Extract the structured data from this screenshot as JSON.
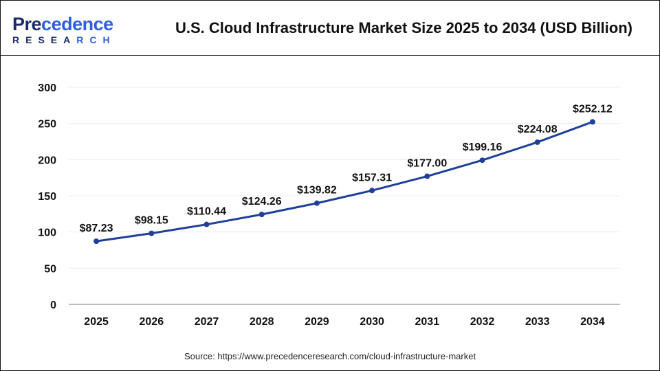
{
  "header": {
    "logo_text": "Precedence",
    "logo_sub": "RESEARCH",
    "title": "U.S. Cloud Infrastructure Market Size 2025 to 2034 (USD Billion)"
  },
  "source": "Source: https://www.precedenceresearch.com/cloud-infrastructure-market",
  "chart_data": {
    "type": "line",
    "title": "U.S. Cloud Infrastructure Market Size 2025 to 2034 (USD Billion)",
    "categories": [
      "2025",
      "2026",
      "2027",
      "2028",
      "2029",
      "2030",
      "2031",
      "2032",
      "2033",
      "2034"
    ],
    "values": [
      87.23,
      98.15,
      110.44,
      124.26,
      139.82,
      157.31,
      177.0,
      199.16,
      224.08,
      252.12
    ],
    "data_labels": [
      "$87.23",
      "$98.15",
      "$110.44",
      "$124.26",
      "$139.82",
      "$157.31",
      "$177.00",
      "$199.16",
      "$224.08",
      "$252.12"
    ],
    "yticks": [
      0,
      50,
      100,
      150,
      200,
      250,
      300
    ],
    "ylim": [
      0,
      300
    ],
    "grid": true,
    "line_color": "#1f3f9a",
    "xlabel": "",
    "ylabel": ""
  }
}
